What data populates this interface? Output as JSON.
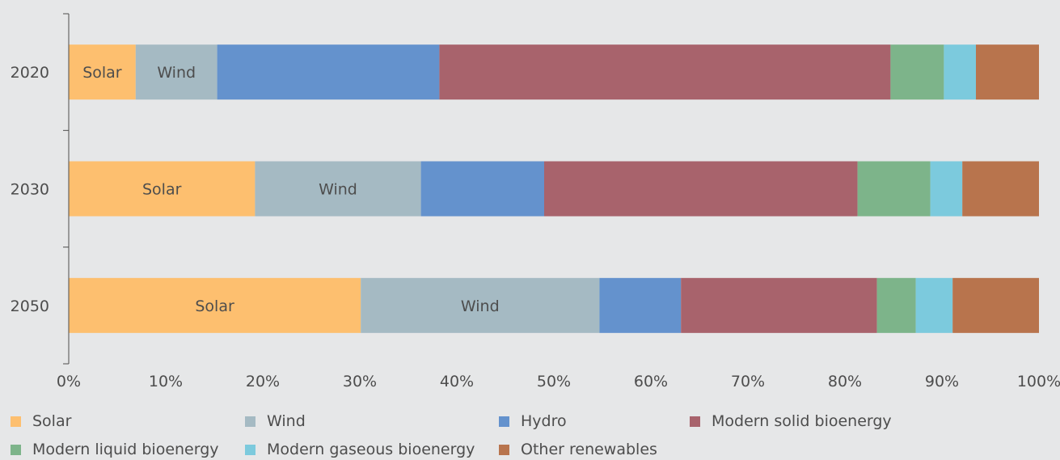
{
  "chart_data": {
    "type": "bar",
    "orientation": "horizontal",
    "stacked": "percent",
    "categories": [
      "2020",
      "2030",
      "2050"
    ],
    "series": [
      {
        "name": "Solar",
        "color": "#fdbf6f",
        "values": [
          6.9,
          19.2,
          30.1
        ]
      },
      {
        "name": "Wind",
        "color": "#a5bac3",
        "values": [
          8.4,
          17.1,
          24.6
        ]
      },
      {
        "name": "Hydro",
        "color": "#6492cd",
        "values": [
          22.9,
          12.7,
          8.4
        ]
      },
      {
        "name": "Modern solid bioenergy",
        "color": "#a8636c",
        "values": [
          46.5,
          32.3,
          20.2
        ]
      },
      {
        "name": "Modern liquid bioenergy",
        "color": "#7db48a",
        "values": [
          5.5,
          7.5,
          4.0
        ]
      },
      {
        "name": "Modern gaseous bioenergy",
        "color": "#7ccadd",
        "values": [
          3.3,
          3.3,
          3.8
        ]
      },
      {
        "name": "Other renewables",
        "color": "#b8744d",
        "values": [
          6.5,
          7.9,
          8.9
        ]
      }
    ],
    "segment_labels": {
      "Solar": [
        "Solar",
        "Solar",
        "Solar"
      ],
      "Wind": [
        "Wind",
        "Wind",
        "Wind"
      ]
    },
    "xlim": [
      0,
      100
    ],
    "xticks": [
      "0%",
      "10%",
      "20%",
      "30%",
      "40%",
      "50%",
      "60%",
      "70%",
      "80%",
      "90%",
      "100%"
    ],
    "xlabel": "",
    "ylabel": "",
    "grid": false,
    "legend_position": "bottom"
  }
}
